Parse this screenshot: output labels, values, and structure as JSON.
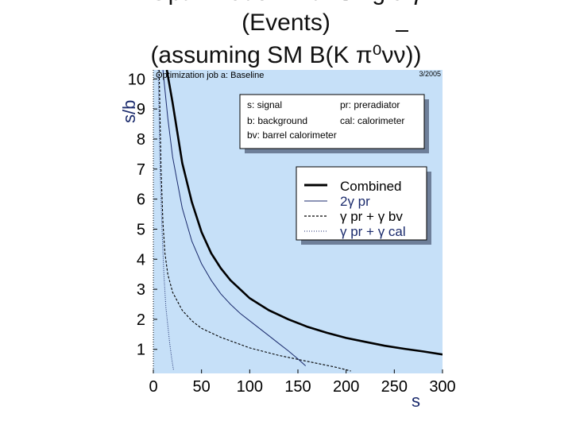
{
  "slide": {
    "title_line1": "Optimization with Single γ",
    "title_line2": "(Events)",
    "title_line3": "(assuming SM B(K   π⁰νν))"
  },
  "chart_data": {
    "type": "line",
    "title": "Optimization job a: Baseline",
    "date": "3/2005",
    "xlabel": "s",
    "ylabel": "s/b",
    "xlim": [
      0,
      300
    ],
    "ylim": [
      0.2,
      10.3
    ],
    "xticks": [
      0,
      50,
      100,
      150,
      200,
      250,
      300
    ],
    "yticks": [
      1,
      2,
      3,
      4,
      5,
      6,
      7,
      8,
      9,
      10
    ],
    "grid": false,
    "legend_position": "top-right",
    "abbreviations": [
      "s: signal",
      "pr: preradiator",
      "b: background",
      "cal: calorimeter",
      "bv: barrel calorimeter"
    ],
    "series": [
      {
        "name": "Combined",
        "style": "solid-thick",
        "color": "#000000",
        "points": [
          [
            14,
            10.3
          ],
          [
            20,
            9.2
          ],
          [
            30,
            7.2
          ],
          [
            40,
            5.9
          ],
          [
            50,
            4.9
          ],
          [
            60,
            4.2
          ],
          [
            70,
            3.7
          ],
          [
            80,
            3.3
          ],
          [
            90,
            3.0
          ],
          [
            100,
            2.7
          ],
          [
            120,
            2.3
          ],
          [
            140,
            2.0
          ],
          [
            160,
            1.75
          ],
          [
            180,
            1.55
          ],
          [
            200,
            1.38
          ],
          [
            220,
            1.25
          ],
          [
            240,
            1.12
          ],
          [
            260,
            1.02
          ],
          [
            280,
            0.93
          ],
          [
            300,
            0.83
          ]
        ]
      },
      {
        "name": "2γ pr",
        "style": "solid-thin",
        "color": "#1a2a6c",
        "points": [
          [
            10,
            10.3
          ],
          [
            15,
            8.7
          ],
          [
            20,
            7.4
          ],
          [
            30,
            5.7
          ],
          [
            40,
            4.6
          ],
          [
            50,
            3.85
          ],
          [
            60,
            3.3
          ],
          [
            70,
            2.85
          ],
          [
            80,
            2.5
          ],
          [
            90,
            2.2
          ],
          [
            100,
            1.95
          ],
          [
            110,
            1.7
          ],
          [
            120,
            1.45
          ],
          [
            130,
            1.2
          ],
          [
            140,
            0.95
          ],
          [
            150,
            0.68
          ],
          [
            158,
            0.45
          ]
        ]
      },
      {
        "name": "γ pr + γ bv",
        "style": "dashed",
        "color": "#000000",
        "points": [
          [
            6,
            10.3
          ],
          [
            8,
            7.0
          ],
          [
            10,
            5.2
          ],
          [
            12,
            4.2
          ],
          [
            15,
            3.5
          ],
          [
            20,
            2.9
          ],
          [
            30,
            2.3
          ],
          [
            40,
            1.95
          ],
          [
            50,
            1.7
          ],
          [
            70,
            1.4
          ],
          [
            100,
            1.05
          ],
          [
            130,
            0.8
          ],
          [
            160,
            0.6
          ],
          [
            190,
            0.4
          ],
          [
            205,
            0.28
          ]
        ]
      },
      {
        "name": "γ pr + γ cal",
        "style": "dotted",
        "color": "#1a2a6c",
        "points": [
          [
            5,
            10.3
          ],
          [
            7,
            7.0
          ],
          [
            9,
            5.0
          ],
          [
            11,
            3.5
          ],
          [
            13,
            2.4
          ],
          [
            15,
            1.8
          ],
          [
            17,
            1.2
          ],
          [
            19,
            0.7
          ],
          [
            21,
            0.3
          ]
        ]
      }
    ]
  }
}
